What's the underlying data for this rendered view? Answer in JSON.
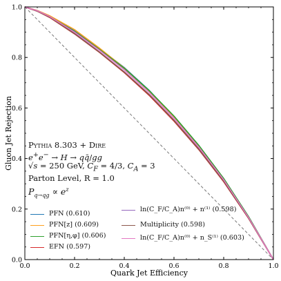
{
  "chart_data": {
    "type": "line",
    "xlabel": "Quark Jet Efficiency",
    "ylabel": "Gluon Jet Rejection",
    "xlim": [
      0.0,
      1.0
    ],
    "ylim": [
      0.0,
      1.0
    ],
    "xticks": [
      "0.0",
      "0.2",
      "0.4",
      "0.6",
      "0.8",
      "1.0"
    ],
    "yticks": [
      "0.0",
      "0.2",
      "0.4",
      "0.6",
      "0.8",
      "1.0"
    ],
    "grid": false,
    "legend_position": "bottom",
    "annotations": {
      "line1": "Pythia 8.303 + Dire",
      "line2": "e⁺e⁻ → H → qq̄/gg",
      "line3": "√s = 250 GeV, C_F = 4/3, C_A = 3",
      "line4": "Parton Level, R = 1.0",
      "line5": "P_{q→qg} ∝ e^z"
    },
    "reference_line": {
      "style": "dashed",
      "color": "#777777",
      "x": [
        0.0,
        1.0
      ],
      "y": [
        1.0,
        0.0
      ]
    },
    "series": [
      {
        "name": "PFN (0.610)",
        "color": "#1f77b4",
        "x": [
          0,
          0.05,
          0.1,
          0.2,
          0.3,
          0.4,
          0.5,
          0.6,
          0.7,
          0.8,
          0.9,
          1.0
        ],
        "y": [
          1.0,
          0.985,
          0.963,
          0.905,
          0.835,
          0.76,
          0.67,
          0.565,
          0.45,
          0.32,
          0.17,
          0.0
        ]
      },
      {
        "name": "PFN[z] (0.609)",
        "color": "#ff9f1c",
        "x": [
          0,
          0.05,
          0.1,
          0.2,
          0.3,
          0.4,
          0.5,
          0.6,
          0.7,
          0.8,
          0.9,
          1.0
        ],
        "y": [
          1.0,
          0.986,
          0.965,
          0.91,
          0.837,
          0.758,
          0.668,
          0.563,
          0.447,
          0.318,
          0.169,
          0.0
        ]
      },
      {
        "name": "PFN[η,φ] (0.606)",
        "color": "#2ca02c",
        "x": [
          0,
          0.05,
          0.1,
          0.2,
          0.3,
          0.4,
          0.5,
          0.6,
          0.7,
          0.8,
          0.9,
          1.0
        ],
        "y": [
          1.0,
          0.985,
          0.962,
          0.903,
          0.832,
          0.757,
          0.669,
          0.568,
          0.452,
          0.321,
          0.17,
          0.0
        ]
      },
      {
        "name": "EFN (0.597)",
        "color": "#d62728",
        "x": [
          0,
          0.05,
          0.1,
          0.2,
          0.3,
          0.4,
          0.5,
          0.6,
          0.7,
          0.8,
          0.9,
          1.0
        ],
        "y": [
          1.0,
          0.983,
          0.958,
          0.893,
          0.82,
          0.74,
          0.65,
          0.548,
          0.435,
          0.308,
          0.163,
          0.0
        ]
      },
      {
        "name": "ln(C_F/C_A)n⁽⁰⁾ + n⁽¹⁾ (0.598)",
        "color": "#9467bd",
        "x": [
          0,
          0.05,
          0.1,
          0.2,
          0.3,
          0.4,
          0.5,
          0.6,
          0.7,
          0.8,
          0.9,
          1.0
        ],
        "y": [
          1.0,
          0.984,
          0.96,
          0.895,
          0.822,
          0.743,
          0.654,
          0.552,
          0.438,
          0.311,
          0.165,
          0.0
        ]
      },
      {
        "name": "Multiplicity (0.598)",
        "color": "#8c564b",
        "x": [
          0,
          0.05,
          0.1,
          0.2,
          0.3,
          0.4,
          0.5,
          0.6,
          0.7,
          0.8,
          0.9,
          1.0
        ],
        "y": [
          1.0,
          0.983,
          0.959,
          0.894,
          0.821,
          0.742,
          0.653,
          0.551,
          0.437,
          0.31,
          0.164,
          0.0
        ]
      },
      {
        "name": "ln(C_F/C_A)n⁽⁰⁾ + n_S⁽¹⁾ (0.603)",
        "color": "#e377c2",
        "x": [
          0,
          0.05,
          0.1,
          0.2,
          0.3,
          0.4,
          0.5,
          0.6,
          0.7,
          0.8,
          0.9,
          1.0
        ],
        "y": [
          1.0,
          0.985,
          0.962,
          0.9,
          0.829,
          0.751,
          0.662,
          0.56,
          0.445,
          0.316,
          0.167,
          0.0
        ]
      }
    ]
  }
}
